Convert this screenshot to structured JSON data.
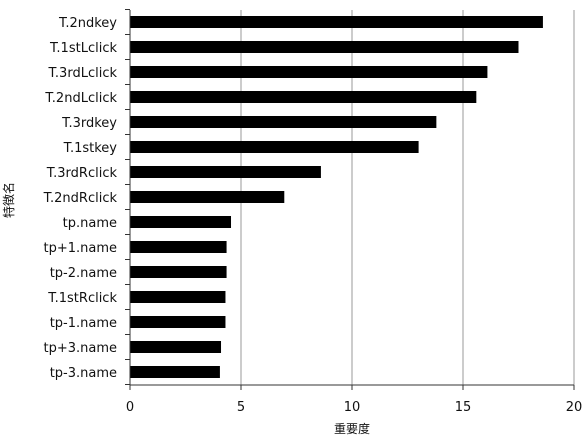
{
  "chart_data": {
    "type": "bar",
    "orientation": "horizontal",
    "title": "",
    "xlabel": "重要度",
    "ylabel": "特徴名",
    "xlim": [
      0,
      20
    ],
    "xticks": [
      0,
      5,
      10,
      15,
      20
    ],
    "xtick_labels": [
      "0",
      "5",
      "10",
      "15",
      "20"
    ],
    "grid": "vertical",
    "legend": "none",
    "bar_color": "#000000",
    "categories": [
      "T.2ndkey",
      "T.1stLclick",
      "T.3rdLclick",
      "T.2ndLclick",
      "T.3rdkey",
      "T.1stkey",
      "T.3rdRclick",
      "T.2ndRclick",
      "tp.name",
      "tp+1.name",
      "tp-2.name",
      "T.1stRclick",
      "tp-1.name",
      "tp+3.name",
      "tp-3.name"
    ],
    "values": [
      18.6,
      17.5,
      16.1,
      15.6,
      13.8,
      13.0,
      8.6,
      6.95,
      4.55,
      4.35,
      4.35,
      4.3,
      4.3,
      4.1,
      4.05
    ]
  }
}
